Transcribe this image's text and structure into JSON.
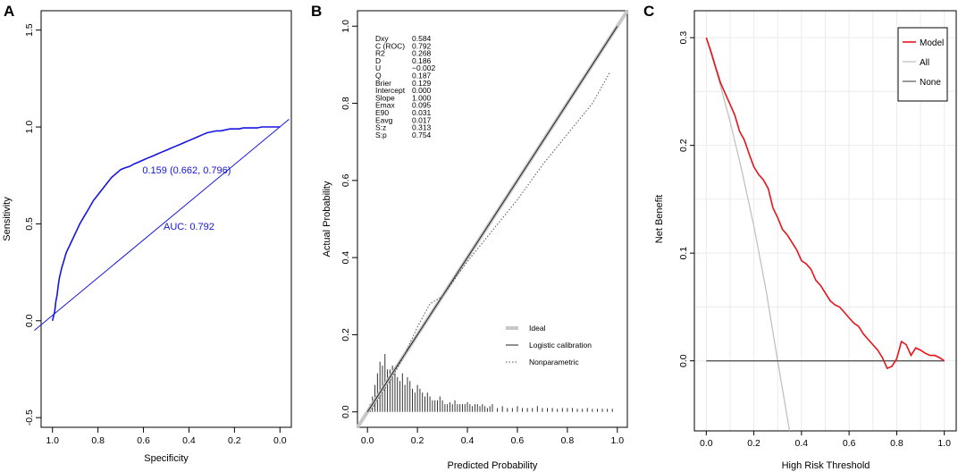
{
  "colors": {
    "roc": "#1515e0",
    "model": "#e8131a",
    "all": "#bdbdbd",
    "none": "#555555"
  },
  "chart_data": [
    {
      "panel": "A",
      "type": "line",
      "title": "",
      "xlabel": "Specificity",
      "ylabel": "Sensitivity",
      "xlim": [
        1.05,
        -0.05
      ],
      "ylim": [
        -0.55,
        1.6
      ],
      "x_ticks": [
        "1.0",
        "0.8",
        "0.6",
        "0.4",
        "0.2",
        "0.0"
      ],
      "x_tick_values": [
        1.0,
        0.8,
        0.6,
        0.4,
        0.2,
        0.0
      ],
      "y_ticks": [
        "-0.5",
        "0.0",
        "0.5",
        "1.0",
        "1.5"
      ],
      "y_tick_values": [
        -0.5,
        0.0,
        0.5,
        1.0,
        1.5
      ],
      "series": [
        {
          "name": "ROC",
          "specificity": [
            1.0,
            0.99,
            0.985,
            0.98,
            0.975,
            0.97,
            0.96,
            0.95,
            0.94,
            0.92,
            0.9,
            0.88,
            0.86,
            0.84,
            0.82,
            0.8,
            0.78,
            0.76,
            0.74,
            0.72,
            0.7,
            0.68,
            0.662,
            0.64,
            0.62,
            0.6,
            0.58,
            0.56,
            0.54,
            0.52,
            0.5,
            0.48,
            0.46,
            0.44,
            0.42,
            0.4,
            0.38,
            0.36,
            0.34,
            0.32,
            0.3,
            0.28,
            0.26,
            0.24,
            0.22,
            0.2,
            0.18,
            0.16,
            0.14,
            0.12,
            0.1,
            0.08,
            0.06,
            0.04,
            0.02,
            0.0
          ],
          "sensitivity": [
            0.0,
            0.05,
            0.1,
            0.13,
            0.18,
            0.22,
            0.27,
            0.31,
            0.35,
            0.4,
            0.45,
            0.5,
            0.54,
            0.58,
            0.62,
            0.65,
            0.68,
            0.71,
            0.74,
            0.76,
            0.78,
            0.79,
            0.796,
            0.81,
            0.82,
            0.83,
            0.84,
            0.85,
            0.86,
            0.87,
            0.88,
            0.89,
            0.9,
            0.91,
            0.92,
            0.93,
            0.94,
            0.95,
            0.96,
            0.97,
            0.975,
            0.98,
            0.98,
            0.985,
            0.99,
            0.99,
            0.99,
            0.995,
            0.995,
            0.995,
            0.995,
            1.0,
            1.0,
            1.0,
            1.0,
            1.0
          ]
        },
        {
          "name": "Reference",
          "specificity": [
            1.08,
            -0.04
          ],
          "sensitivity": [
            -0.05,
            1.04
          ]
        }
      ],
      "annotations": [
        {
          "text": "0.159 (0.662, 0.796)",
          "x": 0.41,
          "y": 0.76
        },
        {
          "text": "AUC: 0.792",
          "x": 0.4,
          "y": 0.47
        }
      ]
    },
    {
      "panel": "B",
      "type": "line",
      "title": "",
      "xlabel": "Predicted Probability",
      "ylabel": "Actual Probability",
      "xlim": [
        -0.04,
        1.04
      ],
      "ylim": [
        -0.04,
        1.04
      ],
      "x_ticks": [
        "0.0",
        "0.2",
        "0.4",
        "0.6",
        "0.8",
        "1.0"
      ],
      "x_tick_values": [
        0.0,
        0.2,
        0.4,
        0.6,
        0.8,
        1.0
      ],
      "y_ticks": [
        "0.0",
        "0.2",
        "0.4",
        "0.6",
        "0.8",
        "1.0"
      ],
      "y_tick_values": [
        0.0,
        0.2,
        0.4,
        0.6,
        0.8,
        1.0
      ],
      "series": [
        {
          "name": "Ideal",
          "x": [
            -0.04,
            1.04
          ],
          "y": [
            -0.04,
            1.04
          ]
        },
        {
          "name": "Logistic calibration",
          "x": [
            0.0,
            1.0
          ],
          "y": [
            0.0,
            1.0
          ]
        },
        {
          "name": "Nonparametric",
          "x": [
            0.01,
            0.05,
            0.1,
            0.15,
            0.2,
            0.25,
            0.3,
            0.4,
            0.5,
            0.6,
            0.7,
            0.8,
            0.9,
            0.97
          ],
          "y": [
            0.0,
            0.04,
            0.09,
            0.15,
            0.22,
            0.28,
            0.3,
            0.39,
            0.47,
            0.55,
            0.64,
            0.72,
            0.8,
            0.88
          ]
        }
      ],
      "histogram": {
        "x": [
          0.01,
          0.02,
          0.03,
          0.04,
          0.05,
          0.06,
          0.07,
          0.08,
          0.09,
          0.1,
          0.11,
          0.12,
          0.13,
          0.14,
          0.15,
          0.16,
          0.17,
          0.18,
          0.19,
          0.2,
          0.21,
          0.22,
          0.23,
          0.24,
          0.25,
          0.26,
          0.27,
          0.28,
          0.29,
          0.3,
          0.31,
          0.32,
          0.33,
          0.34,
          0.35,
          0.36,
          0.37,
          0.38,
          0.39,
          0.4,
          0.41,
          0.42,
          0.43,
          0.44,
          0.45,
          0.46,
          0.47,
          0.48,
          0.49,
          0.5,
          0.52,
          0.54,
          0.56,
          0.58,
          0.6,
          0.62,
          0.64,
          0.66,
          0.68,
          0.7,
          0.72,
          0.74,
          0.76,
          0.78,
          0.8,
          0.82,
          0.84,
          0.86,
          0.88,
          0.9,
          0.92,
          0.94,
          0.96,
          0.98
        ],
        "height": [
          0.02,
          0.04,
          0.07,
          0.1,
          0.13,
          0.12,
          0.15,
          0.11,
          0.11,
          0.12,
          0.1,
          0.09,
          0.08,
          0.1,
          0.07,
          0.09,
          0.08,
          0.06,
          0.05,
          0.07,
          0.06,
          0.05,
          0.04,
          0.05,
          0.04,
          0.03,
          0.03,
          0.03,
          0.04,
          0.03,
          0.02,
          0.02,
          0.025,
          0.02,
          0.03,
          0.02,
          0.02,
          0.02,
          0.02,
          0.025,
          0.02,
          0.015,
          0.02,
          0.02,
          0.015,
          0.02,
          0.015,
          0.01,
          0.015,
          0.02,
          0.01,
          0.015,
          0.01,
          0.01,
          0.015,
          0.01,
          0.01,
          0.01,
          0.015,
          0.01,
          0.01,
          0.01,
          0.008,
          0.01,
          0.01,
          0.01,
          0.008,
          0.008,
          0.01,
          0.008,
          0.008,
          0.008,
          0.008,
          0.008
        ]
      },
      "stats": [
        {
          "name": "Dxy",
          "value": "0.584"
        },
        {
          "name": "C (ROC)",
          "value": "0.792"
        },
        {
          "name": "R2",
          "value": "0.268"
        },
        {
          "name": "D",
          "value": "0.186"
        },
        {
          "name": "U",
          "value": "−0.002"
        },
        {
          "name": "Q",
          "value": "0.187"
        },
        {
          "name": "Brier",
          "value": "0.129"
        },
        {
          "name": "Intercept",
          "value": "0.000"
        },
        {
          "name": "Slope",
          "value": "1.000"
        },
        {
          "name": "Emax",
          "value": "0.095"
        },
        {
          "name": "E90",
          "value": "0.031"
        },
        {
          "name": "Eavg",
          "value": "0.017"
        },
        {
          "name": "S:z",
          "value": "0.313"
        },
        {
          "name": "S:p",
          "value": "0.754"
        }
      ],
      "legend": [
        "Ideal",
        "Logistic calibration",
        "Nonparametric"
      ]
    },
    {
      "panel": "C",
      "type": "line",
      "title": "",
      "xlabel": "High Risk Threshold",
      "ylabel": "Net Benefit",
      "xlim": [
        -0.05,
        1.05
      ],
      "ylim": [
        -0.065,
        0.325
      ],
      "x_ticks": [
        "0.0",
        "0.2",
        "0.4",
        "0.6",
        "0.8",
        "1.0"
      ],
      "x_tick_values": [
        0.0,
        0.2,
        0.4,
        0.6,
        0.8,
        1.0
      ],
      "y_ticks": [
        "0.0",
        "0.1",
        "0.2",
        "0.3"
      ],
      "y_tick_values": [
        0.0,
        0.1,
        0.2,
        0.3
      ],
      "series": [
        {
          "name": "Model",
          "x": [
            0.0,
            0.02,
            0.04,
            0.06,
            0.08,
            0.1,
            0.12,
            0.14,
            0.16,
            0.18,
            0.2,
            0.22,
            0.24,
            0.26,
            0.28,
            0.3,
            0.32,
            0.34,
            0.36,
            0.38,
            0.4,
            0.42,
            0.44,
            0.46,
            0.48,
            0.5,
            0.52,
            0.54,
            0.56,
            0.58,
            0.6,
            0.62,
            0.64,
            0.66,
            0.68,
            0.7,
            0.72,
            0.74,
            0.75,
            0.76,
            0.78,
            0.8,
            0.82,
            0.84,
            0.86,
            0.88,
            0.9,
            0.92,
            0.94,
            0.96,
            0.98,
            1.0
          ],
          "y": [
            0.3,
            0.287,
            0.272,
            0.258,
            0.248,
            0.238,
            0.228,
            0.213,
            0.205,
            0.192,
            0.18,
            0.173,
            0.168,
            0.16,
            0.142,
            0.133,
            0.122,
            0.117,
            0.11,
            0.103,
            0.093,
            0.09,
            0.085,
            0.075,
            0.07,
            0.063,
            0.056,
            0.052,
            0.05,
            0.045,
            0.04,
            0.035,
            0.032,
            0.025,
            0.02,
            0.015,
            0.01,
            0.003,
            -0.002,
            -0.007,
            -0.005,
            0.002,
            0.018,
            0.015,
            0.005,
            0.012,
            0.01,
            0.007,
            0.005,
            0.005,
            0.003,
            0.0
          ]
        },
        {
          "name": "All",
          "x": [
            0.0,
            0.05,
            0.1,
            0.15,
            0.2,
            0.25,
            0.3,
            0.35
          ],
          "y": [
            0.3,
            0.263,
            0.222,
            0.176,
            0.125,
            0.067,
            0.0,
            -0.077
          ]
        },
        {
          "name": "None",
          "x": [
            0.0,
            1.0
          ],
          "y": [
            0.0,
            0.0
          ]
        }
      ],
      "legend": [
        "Model",
        "All",
        "None"
      ]
    }
  ],
  "panels": {
    "a": {
      "label": "A",
      "xlabel": "Specificity",
      "ylabel": "Sensitivity",
      "annotation_point": "0.159 (0.662, 0.796)",
      "annotation_auc": "AUC: 0.792"
    },
    "b": {
      "label": "B",
      "xlabel": "Predicted Probability",
      "ylabel": "Actual Probability"
    },
    "c": {
      "label": "C",
      "xlabel": "High Risk Threshold",
      "ylabel": "Net Benefit"
    }
  }
}
